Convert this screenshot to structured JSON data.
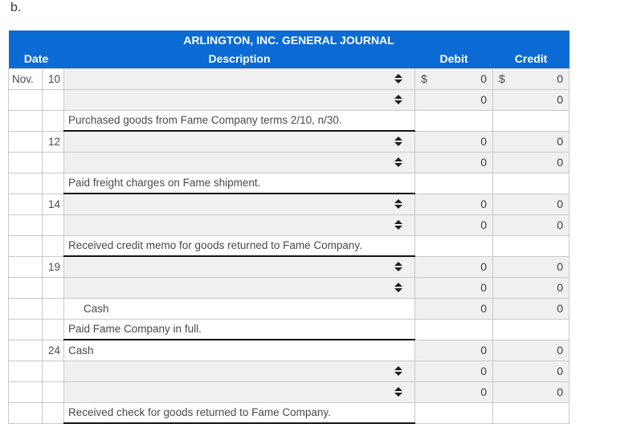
{
  "page_label": "b.",
  "colors": {
    "header_blue": "#0c6ad4",
    "input_cell_gray": "#f0f0f0",
    "grid_border": "#c9c9c9",
    "explanation_underline": "#151515"
  },
  "journal": {
    "title": "ARLINGTON, INC. GENERAL JOURNAL",
    "headers": {
      "date": "Date",
      "description": "Description",
      "debit": "Debit",
      "credit": "Credit"
    },
    "icons": {
      "select_spinner": "up-down-spinner-icon"
    },
    "rows": [
      {
        "type": "select",
        "month": "Nov.",
        "day": "10",
        "debit_prefix": "$",
        "debit": "0",
        "credit_prefix": "$",
        "credit": "0"
      },
      {
        "type": "select",
        "month": "",
        "day": "",
        "debit_prefix": "",
        "debit": "0",
        "credit_prefix": "",
        "credit": "0"
      },
      {
        "type": "explanation",
        "month": "",
        "day": "",
        "text": "Purchased goods from Fame Company terms 2/10, n/30."
      },
      {
        "type": "select",
        "month": "",
        "day": "12",
        "debit_prefix": "",
        "debit": "0",
        "credit_prefix": "",
        "credit": "0"
      },
      {
        "type": "select",
        "month": "",
        "day": "",
        "debit_prefix": "",
        "debit": "0",
        "credit_prefix": "",
        "credit": "0"
      },
      {
        "type": "explanation",
        "month": "",
        "day": "",
        "text": "Paid freight charges on Fame shipment."
      },
      {
        "type": "select",
        "month": "",
        "day": "14",
        "debit_prefix": "",
        "debit": "0",
        "credit_prefix": "",
        "credit": "0"
      },
      {
        "type": "select",
        "month": "",
        "day": "",
        "debit_prefix": "",
        "debit": "0",
        "credit_prefix": "",
        "credit": "0"
      },
      {
        "type": "explanation",
        "month": "",
        "day": "",
        "text": "Received credit memo for goods returned to Fame Company."
      },
      {
        "type": "select",
        "month": "",
        "day": "19",
        "debit_prefix": "",
        "debit": "0",
        "credit_prefix": "",
        "credit": "0"
      },
      {
        "type": "select",
        "month": "",
        "day": "",
        "debit_prefix": "",
        "debit": "0",
        "credit_prefix": "",
        "credit": "0"
      },
      {
        "type": "account",
        "month": "",
        "day": "",
        "text": "Cash",
        "indented": true,
        "debit_prefix": "",
        "debit": "0",
        "credit_prefix": "",
        "credit": "0"
      },
      {
        "type": "explanation",
        "month": "",
        "day": "",
        "text": "Paid Fame Company in full."
      },
      {
        "type": "account",
        "month": "",
        "day": "24",
        "text": "Cash",
        "indented": false,
        "debit_prefix": "",
        "debit": "0",
        "credit_prefix": "",
        "credit": "0"
      },
      {
        "type": "select",
        "month": "",
        "day": "",
        "debit_prefix": "",
        "debit": "0",
        "credit_prefix": "",
        "credit": "0"
      },
      {
        "type": "select",
        "month": "",
        "day": "",
        "debit_prefix": "",
        "debit": "0",
        "credit_prefix": "",
        "credit": "0"
      },
      {
        "type": "explanation",
        "month": "",
        "day": "",
        "text": "Received check for goods returned to Fame Company."
      }
    ]
  }
}
